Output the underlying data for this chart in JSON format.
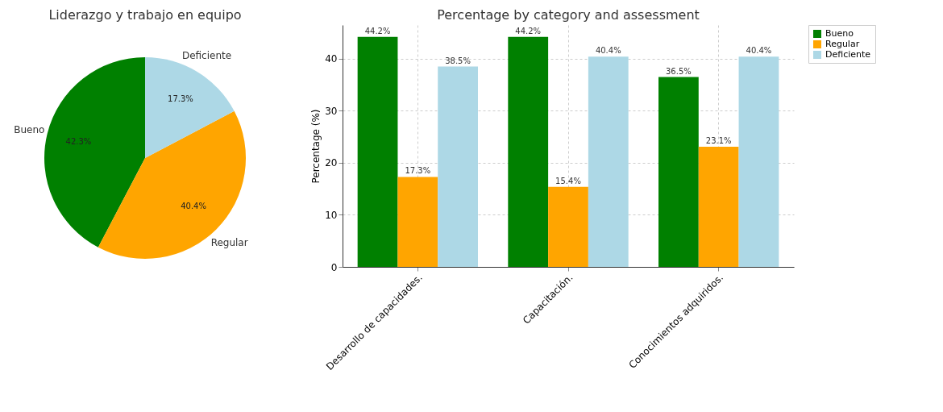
{
  "chart_data": [
    {
      "type": "pie",
      "title": "Liderazgo y trabajo en equipo",
      "categories": [
        "Bueno",
        "Regular",
        "Deficiente"
      ],
      "values": [
        42.3,
        40.4,
        17.3
      ],
      "colors": [
        "#008000",
        "#ffa500",
        "#add8e6"
      ],
      "value_labels": [
        "42.3%",
        "40.4%",
        "17.3%"
      ],
      "legend": false
    },
    {
      "type": "bar",
      "title": "Percentage by category and assessment",
      "ylabel": "Percentage (%)",
      "categories": [
        "Desarrollo de capacidades.",
        "Capacitación.",
        "Conocimientos adquiridos."
      ],
      "ylim": [
        0,
        46.5
      ],
      "yticks": [
        0,
        10,
        20,
        30,
        40
      ],
      "grid": true,
      "legend": "top right",
      "series": [
        {
          "name": "Bueno",
          "color": "#008000",
          "values": [
            44.2,
            44.2,
            36.5
          ],
          "value_labels": [
            "44.2%",
            "44.2%",
            "36.5%"
          ]
        },
        {
          "name": "Regular",
          "color": "#ffa500",
          "values": [
            17.3,
            15.4,
            23.1
          ],
          "value_labels": [
            "17.3%",
            "15.4%",
            "23.1%"
          ]
        },
        {
          "name": "Deficiente",
          "color": "#add8e6",
          "values": [
            38.5,
            40.4,
            40.4
          ],
          "value_labels": [
            "38.5%",
            "40.4%",
            "40.4%"
          ]
        }
      ]
    }
  ]
}
